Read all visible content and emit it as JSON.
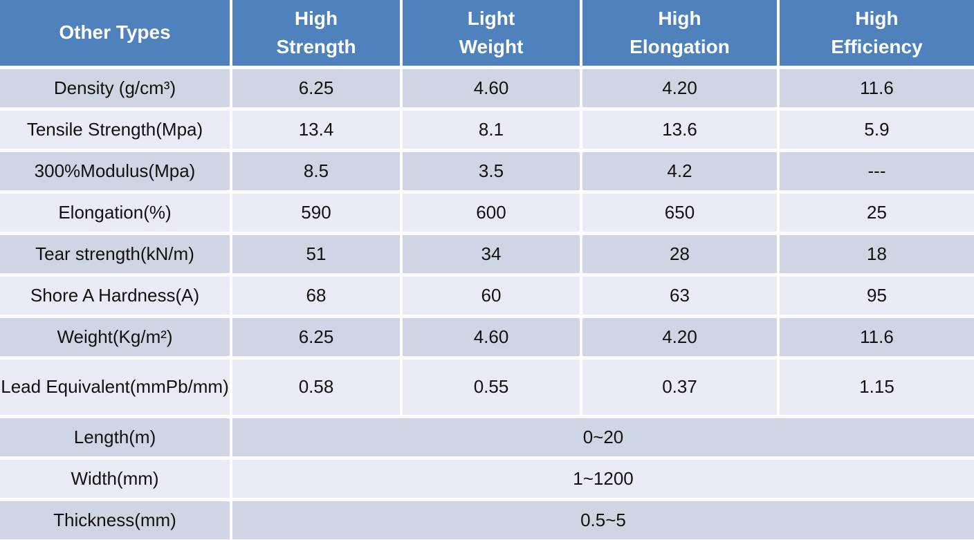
{
  "table": {
    "header": {
      "col0": "Other Types",
      "columns": [
        {
          "line1": "High",
          "line2": "Strength"
        },
        {
          "line1": "Light",
          "line2": "Weight"
        },
        {
          "line1": "High",
          "line2": "Elongation"
        },
        {
          "line1": "High",
          "line2": "Efficiency"
        }
      ]
    },
    "rows": [
      {
        "label": "Density (g/cm³)",
        "values": [
          "6.25",
          "4.60",
          "4.20",
          "11.6"
        ]
      },
      {
        "label": "Tensile Strength(Mpa)",
        "values": [
          "13.4",
          "8.1",
          "13.6",
          "5.9"
        ]
      },
      {
        "label": "300%Modulus(Mpa)",
        "values": [
          "8.5",
          "3.5",
          "4.2",
          "---"
        ]
      },
      {
        "label": "Elongation(%)",
        "values": [
          "590",
          "600",
          "650",
          "25"
        ]
      },
      {
        "label": "Tear strength(kN/m)",
        "values": [
          "51",
          "34",
          "28",
          "18"
        ]
      },
      {
        "label": "Shore A Hardness(A)",
        "values": [
          "68",
          "60",
          "63",
          "95"
        ]
      },
      {
        "label": "Weight(Kg/m²)",
        "values": [
          "6.25",
          "4.60",
          "4.20",
          "11.6"
        ]
      },
      {
        "label": "Lead Equivalent",
        "label_line2": "(mmPb/mm)",
        "values": [
          "0.58",
          "0.55",
          "0.37",
          "1.15"
        ]
      },
      {
        "label": "Length(m)",
        "span": "0~20"
      },
      {
        "label": "Width(mm)",
        "span": "1~1200"
      },
      {
        "label": "Thickness(mm)",
        "span": "0.5~5"
      }
    ],
    "colors": {
      "header_bg": "#4f81bd",
      "header_text": "#ffffff",
      "band_dark": "#cfd5e4",
      "band_light": "#e9ecf4",
      "grid": "#ffffff",
      "body_text": "#111111"
    }
  }
}
